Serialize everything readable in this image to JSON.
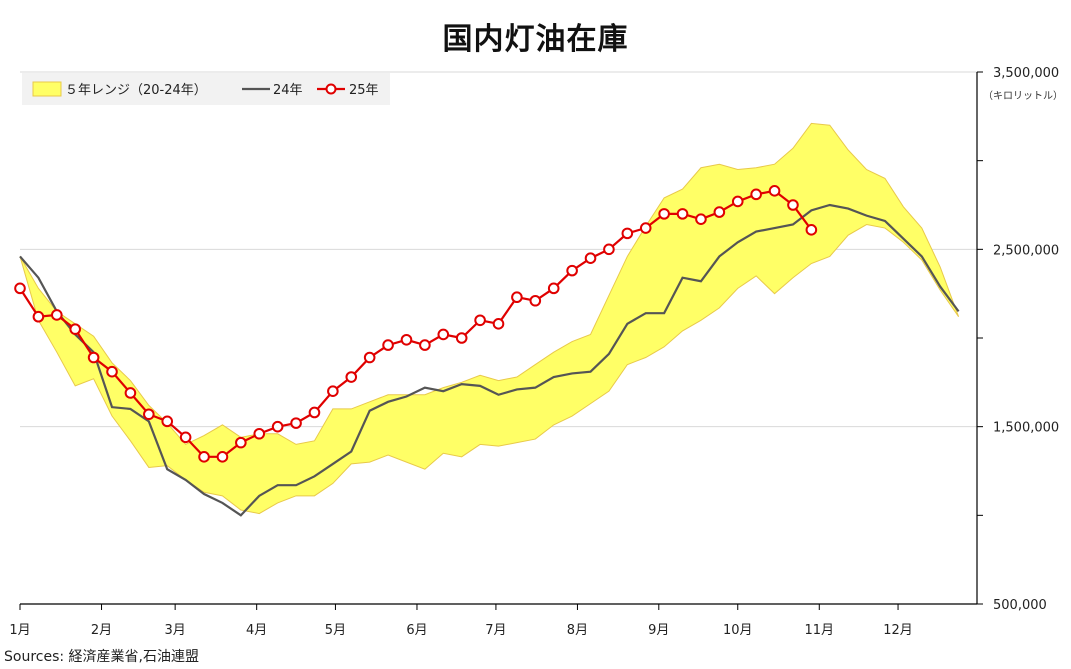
{
  "title": "国内灯油在庫",
  "unit": "（キロリットル）",
  "source": "Sources: 経済産業省,石油連盟",
  "legend": {
    "range_label": "５年レンジ（20-24年）",
    "series24_label": "24年",
    "series25_label": "25年"
  },
  "colors": {
    "range_fill": "#FFFF66",
    "range_edge": "#E8C94A",
    "series24": "#555555",
    "series25": "#E00000",
    "grid": "#D9D9D9",
    "axis": "#000000"
  },
  "chart_data": {
    "type": "line",
    "title": "国内灯油在庫",
    "ylabel": "（キロリットル）",
    "xlabel": "",
    "x_unit": "weeks from start of year (52 weeks)",
    "ylim": [
      500000,
      3500000
    ],
    "y_ticks": [
      500000,
      1500000,
      2500000,
      3500000
    ],
    "y_tick_labels": [
      "500,000",
      "1,500,000",
      "2,500,000",
      "3,500,000"
    ],
    "x_tick_labels": [
      "1月",
      "2月",
      "3月",
      "4月",
      "5月",
      "6月",
      "7月",
      "8月",
      "9月",
      "10月",
      "11月",
      "12月"
    ],
    "grid": true,
    "legend_position": "top-left",
    "range_band": {
      "name": "５年レンジ（20-24年）",
      "x": [
        0,
        1,
        2,
        3,
        4,
        5,
        6,
        7,
        8,
        9,
        10,
        11,
        12,
        13,
        14,
        15,
        16,
        17,
        18,
        19,
        20,
        21,
        22,
        23,
        24,
        25,
        26,
        27,
        28,
        29,
        30,
        31,
        32,
        33,
        34,
        35,
        36,
        37,
        38,
        39,
        40,
        41,
        42,
        43,
        44,
        45,
        46,
        47,
        48,
        49,
        50,
        51
      ],
      "upper": [
        2460000,
        2280000,
        2150000,
        2080000,
        2010000,
        1860000,
        1760000,
        1620000,
        1520000,
        1400000,
        1450000,
        1510000,
        1440000,
        1460000,
        1460000,
        1400000,
        1420000,
        1600000,
        1600000,
        1640000,
        1680000,
        1680000,
        1680000,
        1720000,
        1750000,
        1790000,
        1760000,
        1780000,
        1850000,
        1920000,
        1980000,
        2020000,
        2240000,
        2460000,
        2630000,
        2790000,
        2840000,
        2960000,
        2980000,
        2950000,
        2960000,
        2980000,
        3070000,
        3210000,
        3200000,
        3060000,
        2950000,
        2900000,
        2740000,
        2620000,
        2400000,
        2120000
      ],
      "lower": [
        2460000,
        2100000,
        1920000,
        1730000,
        1770000,
        1560000,
        1420000,
        1270000,
        1280000,
        1200000,
        1130000,
        1110000,
        1030000,
        1010000,
        1070000,
        1110000,
        1110000,
        1180000,
        1290000,
        1300000,
        1340000,
        1300000,
        1260000,
        1350000,
        1330000,
        1400000,
        1390000,
        1410000,
        1430000,
        1510000,
        1560000,
        1630000,
        1700000,
        1850000,
        1890000,
        1950000,
        2040000,
        2100000,
        2170000,
        2280000,
        2350000,
        2250000,
        2340000,
        2420000,
        2460000,
        2580000,
        2640000,
        2620000,
        2540000,
        2440000,
        2270000,
        2120000
      ]
    },
    "series": [
      {
        "name": "24年",
        "x": [
          0,
          1,
          2,
          3,
          4,
          5,
          6,
          7,
          8,
          9,
          10,
          11,
          12,
          13,
          14,
          15,
          16,
          17,
          18,
          19,
          20,
          21,
          22,
          23,
          24,
          25,
          26,
          27,
          28,
          29,
          30,
          31,
          32,
          33,
          34,
          35,
          36,
          37,
          38,
          39,
          40,
          41,
          42,
          43,
          44,
          45,
          46,
          47,
          48,
          49,
          50,
          51
        ],
        "values": [
          2460000,
          2340000,
          2150000,
          2020000,
          1920000,
          1610000,
          1600000,
          1530000,
          1260000,
          1200000,
          1120000,
          1070000,
          1000000,
          1110000,
          1170000,
          1170000,
          1220000,
          1290000,
          1360000,
          1590000,
          1640000,
          1670000,
          1720000,
          1700000,
          1740000,
          1730000,
          1680000,
          1710000,
          1720000,
          1780000,
          1800000,
          1810000,
          1910000,
          2080000,
          2140000,
          2140000,
          2340000,
          2320000,
          2460000,
          2540000,
          2600000,
          2620000,
          2640000,
          2720000,
          2750000,
          2730000,
          2690000,
          2660000,
          2560000,
          2460000,
          2290000,
          2150000
        ]
      },
      {
        "name": "25年",
        "x": [
          0,
          1,
          2,
          3,
          4,
          5,
          6,
          7,
          8,
          9,
          10,
          11,
          12,
          13,
          14,
          15,
          16,
          17,
          18,
          19,
          20,
          21,
          22,
          23,
          24,
          25,
          26,
          27,
          28,
          29,
          30,
          31,
          32,
          33,
          34,
          35,
          36,
          37,
          38,
          39,
          40,
          41,
          42,
          43
        ],
        "values": [
          2280000,
          2120000,
          2130000,
          2050000,
          1890000,
          1810000,
          1690000,
          1570000,
          1530000,
          1440000,
          1330000,
          1330000,
          1410000,
          1460000,
          1500000,
          1520000,
          1580000,
          1700000,
          1780000,
          1890000,
          1960000,
          1990000,
          1960000,
          2020000,
          2000000,
          2100000,
          2080000,
          2230000,
          2210000,
          2280000,
          2380000,
          2450000,
          2500000,
          2590000,
          2620000,
          2700000,
          2700000,
          2670000,
          2710000,
          2770000,
          2810000,
          2830000,
          2750000,
          2610000
        ]
      }
    ]
  }
}
